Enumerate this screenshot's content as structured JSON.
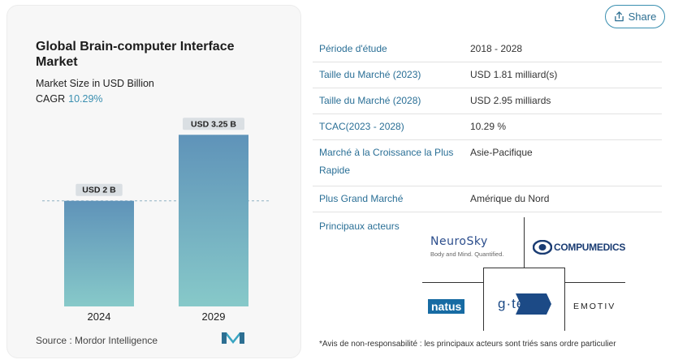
{
  "share_label": "Share",
  "card": {
    "title": "Global Brain-computer Interface Market",
    "subtitle": "Market Size in USD Billion",
    "cagr_label": "CAGR",
    "cagr_value": "10.29%",
    "source": "Source :  Mordor Intelligence"
  },
  "chart_data": {
    "type": "bar",
    "categories": [
      "2024",
      "2029"
    ],
    "values": [
      2,
      3.25
    ],
    "data_labels": [
      "USD 2 B",
      "USD 3.25 B"
    ],
    "title": "Global Brain-computer Interface Market",
    "ylabel": "Market Size in USD Billion",
    "ylim": [
      0,
      3.5
    ],
    "grid": false,
    "colors": [
      "#5f93b9",
      "#87c9c9"
    ]
  },
  "table": {
    "rows": [
      {
        "label": "Période d'étude",
        "value": "2018 - 2028"
      },
      {
        "label": "Taille du Marché (2023)",
        "value": "USD 1.81 milliard(s)"
      },
      {
        "label": "Taille du Marché (2028)",
        "value": "USD 2.95 milliards"
      },
      {
        "label": "TCAC(2023 - 2028)",
        "value": "10.29 %"
      },
      {
        "label": "Marché à la Croissance la Plus Rapide",
        "value": "Asie-Pacifique"
      },
      {
        "label": "Plus Grand Marché",
        "value": "Amérique du Nord"
      }
    ]
  },
  "players": {
    "label": "Principaux acteurs",
    "logos": {
      "neurosky": "NeuroSky",
      "neurosky_tag": "Body and Mind. Quantified.",
      "compumedics": "COMPUMEDICS",
      "natus": "natus",
      "gtec": "g·tec",
      "emotiv": "EMOTIV"
    },
    "disclaimer": "*Avis de non-responsabilité : les principaux acteurs sont triés sans ordre particulier"
  }
}
